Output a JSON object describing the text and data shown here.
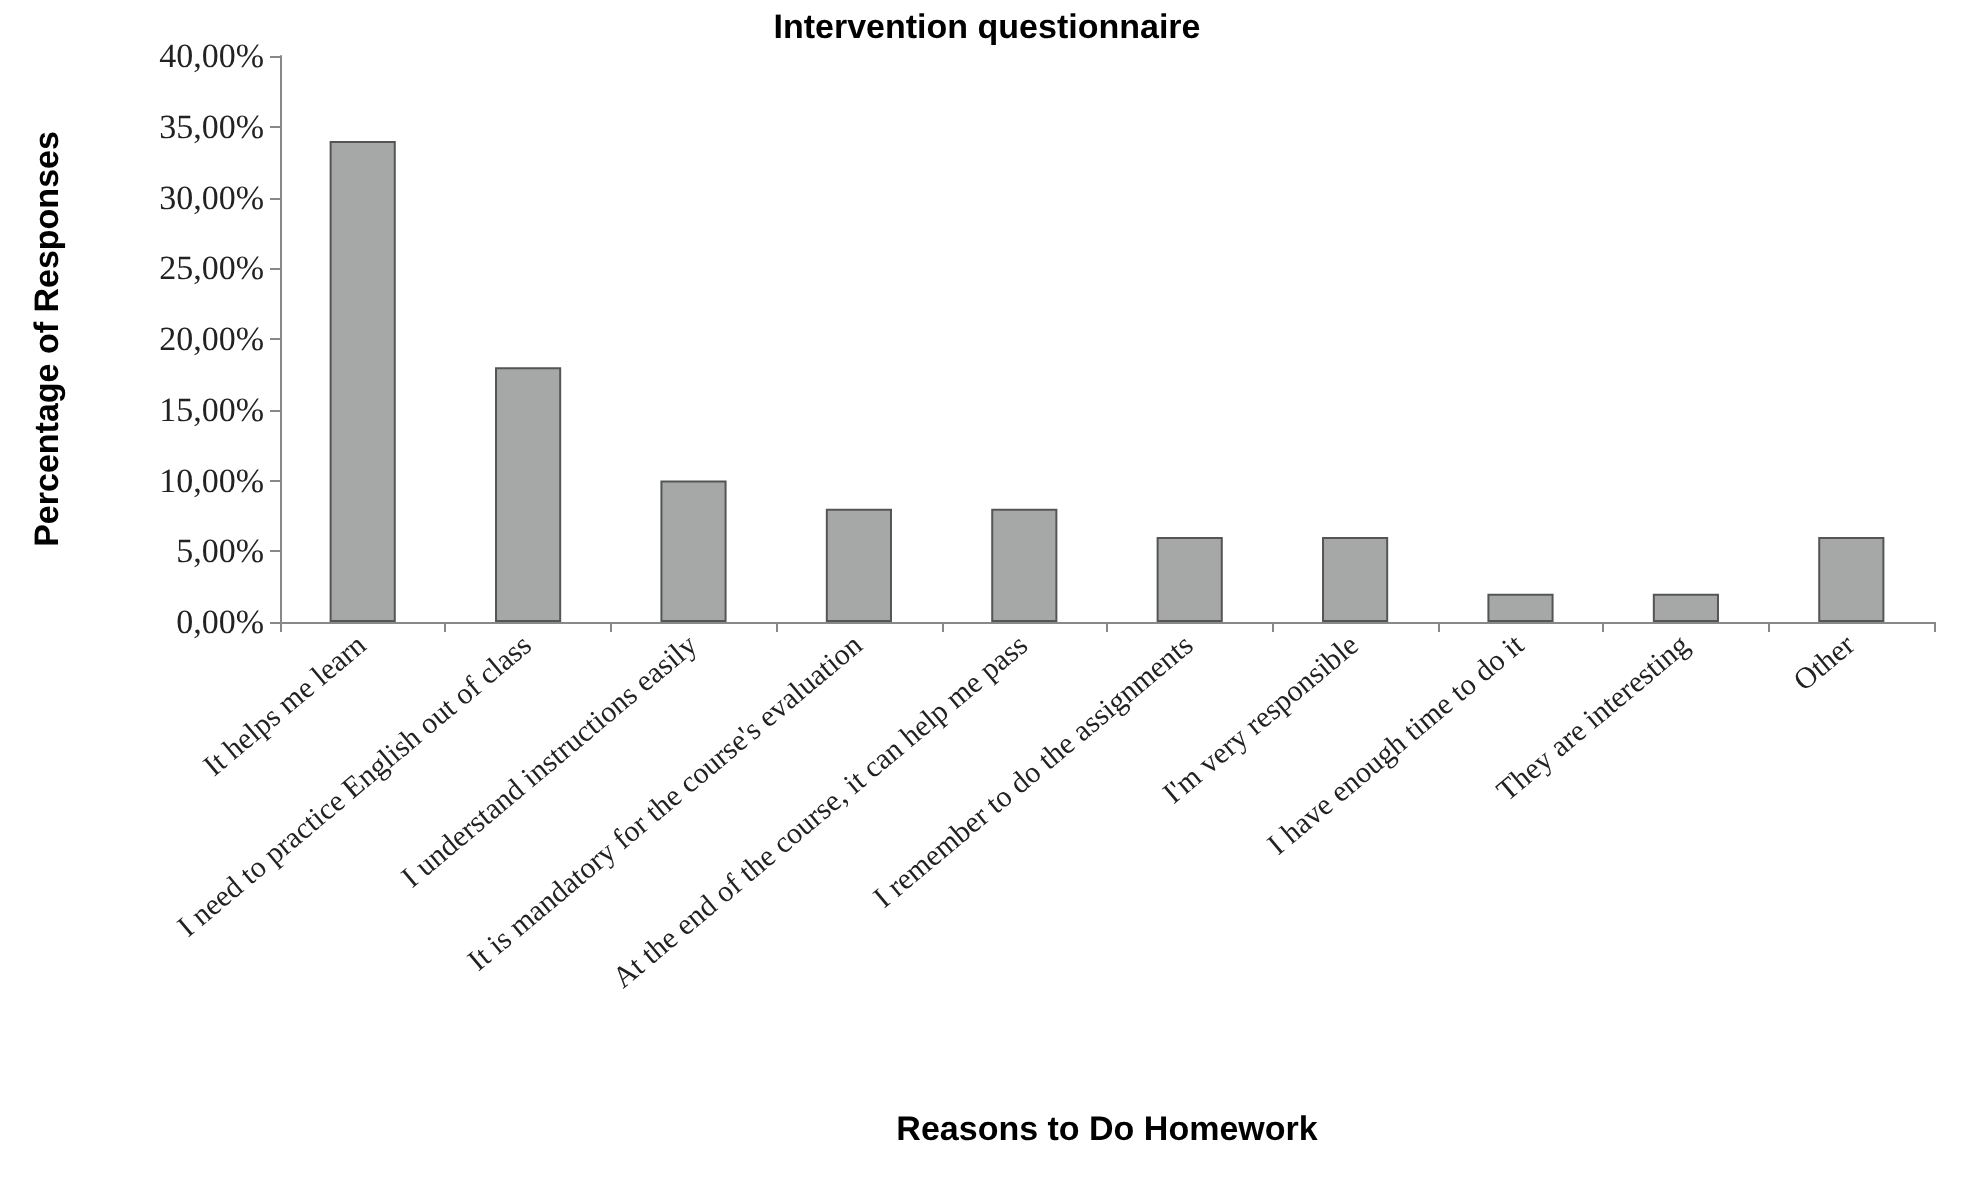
{
  "chart_data": {
    "type": "bar",
    "title": "Intervention questionnaire",
    "xlabel": "Reasons to Do Homework",
    "ylabel": "Percentage of Responses",
    "categories": [
      "It helps me learn",
      "I need to practice English out of class",
      "I understand instructions easily",
      "It is mandatory for the course's evaluation",
      "At the end of the course, it can help me pass",
      "I remember to do the assignments",
      "I'm very responsible",
      "I have enough time to do it",
      "They are interesting",
      "Other"
    ],
    "values": [
      34,
      18,
      10,
      8,
      8,
      6,
      6,
      2,
      2,
      6
    ],
    "color": "#a6a8a7",
    "ylim": [
      0,
      40
    ],
    "yticks": [
      {
        "value": 0,
        "label": "0,00%"
      },
      {
        "value": 5,
        "label": "5,00%"
      },
      {
        "value": 10,
        "label": "10,00%"
      },
      {
        "value": 15,
        "label": "15,00%"
      },
      {
        "value": 20,
        "label": "20,00%"
      },
      {
        "value": 25,
        "label": "25,00%"
      },
      {
        "value": 30,
        "label": "30,00%"
      },
      {
        "value": 35,
        "label": "35,00%"
      },
      {
        "value": 40,
        "label": "40,00%"
      }
    ],
    "grid": false
  }
}
